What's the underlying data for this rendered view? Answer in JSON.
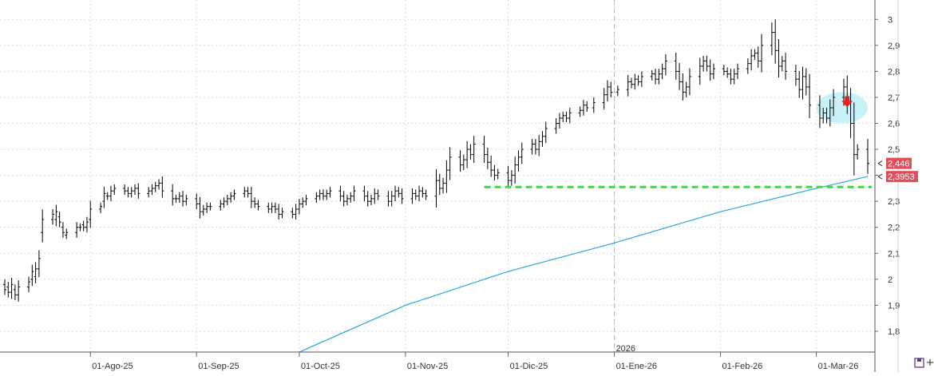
{
  "chart_data": {
    "type": "line",
    "subtype": "ohlc-bars",
    "title": "",
    "xlabel": "",
    "ylabel": "",
    "x_range": [
      "2025-07-07",
      "2026-03-16"
    ],
    "ylim": [
      1.72,
      3.05
    ],
    "y_ticks": [
      "3",
      "2,9",
      "2,8",
      "2,7",
      "2,6",
      "2,5",
      "2,4",
      "2,3",
      "2,2",
      "2,1",
      "2",
      "1,9",
      "1,8"
    ],
    "y_tick_values": [
      3.0,
      2.9,
      2.8,
      2.7,
      2.6,
      2.5,
      2.4,
      2.3,
      2.2,
      2.1,
      2.0,
      1.9,
      1.8
    ],
    "x_tick_labels": [
      {
        "label": "01-Ago-25",
        "date": "2025-08-01"
      },
      {
        "label": "01-Sep-25",
        "date": "2025-09-01"
      },
      {
        "label": "01-Oct-25",
        "date": "2025-10-01"
      },
      {
        "label": "01-Nov-25",
        "date": "2025-11-01"
      },
      {
        "label": "01-Dic-25",
        "date": "2025-12-01"
      },
      {
        "label": "01-Ene-26",
        "date": "2026-01-01"
      },
      {
        "label": "01-Feb-26",
        "date": "2026-02-01"
      },
      {
        "label": "01-Mar-26",
        "date": "2026-03-01"
      }
    ],
    "year_separator": {
      "label": "2026",
      "date": "2026-01-01"
    },
    "grid": true,
    "series": [
      {
        "kind": "ohlc",
        "color": "#000000",
        "points": [
          [
            "2025-07-07",
            1.98,
            1.96
          ],
          [
            "2025-07-08",
            1.97,
            1.95
          ],
          [
            "2025-07-09",
            1.95,
            1.98
          ],
          [
            "2025-07-10",
            1.96,
            1.94
          ],
          [
            "2025-07-11",
            1.94,
            1.97
          ],
          [
            "2025-07-14",
            1.97,
            1.99
          ],
          [
            "2025-07-15",
            2.0,
            2.03
          ],
          [
            "2025-07-16",
            2.01,
            2.04
          ],
          [
            "2025-07-17",
            2.04,
            2.08
          ],
          [
            "2025-07-18",
            2.18,
            2.23
          ],
          [
            "2025-07-21",
            2.23,
            2.25
          ],
          [
            "2025-07-22",
            2.23,
            2.26
          ],
          [
            "2025-07-23",
            2.24,
            2.22
          ],
          [
            "2025-07-24",
            2.2,
            2.18
          ],
          [
            "2025-07-25",
            2.17,
            2.18
          ],
          [
            "2025-07-28",
            2.18,
            2.2
          ],
          [
            "2025-07-29",
            2.2,
            2.2
          ],
          [
            "2025-07-30",
            2.21,
            2.2
          ],
          [
            "2025-07-31",
            2.2,
            2.22
          ],
          [
            "2025-08-01",
            2.23,
            2.27
          ],
          [
            "2025-08-04",
            2.27,
            2.28
          ],
          [
            "2025-08-05",
            2.3,
            2.33
          ],
          [
            "2025-08-06",
            2.32,
            2.32
          ],
          [
            "2025-08-07",
            2.32,
            2.34
          ],
          [
            "2025-08-08",
            2.34,
            2.35
          ],
          [
            "2025-08-11",
            2.35,
            2.34
          ],
          [
            "2025-08-12",
            2.34,
            2.33
          ],
          [
            "2025-08-13",
            2.33,
            2.34
          ],
          [
            "2025-08-14",
            2.34,
            2.35
          ],
          [
            "2025-08-15",
            2.35,
            2.33
          ],
          [
            "2025-08-18",
            2.33,
            2.34
          ],
          [
            "2025-08-19",
            2.34,
            2.35
          ],
          [
            "2025-08-20",
            2.35,
            2.36
          ],
          [
            "2025-08-21",
            2.36,
            2.37
          ],
          [
            "2025-08-22",
            2.37,
            2.34
          ],
          [
            "2025-08-25",
            2.34,
            2.31
          ],
          [
            "2025-08-26",
            2.31,
            2.31
          ],
          [
            "2025-08-27",
            2.31,
            2.32
          ],
          [
            "2025-08-28",
            2.32,
            2.3
          ],
          [
            "2025-08-29",
            2.3,
            2.31
          ],
          [
            "2025-09-01",
            2.31,
            2.29
          ],
          [
            "2025-09-02",
            2.29,
            2.26
          ],
          [
            "2025-09-03",
            2.26,
            2.27
          ],
          [
            "2025-09-04",
            2.27,
            2.28
          ],
          [
            "2025-09-05",
            2.28,
            2.28
          ],
          [
            "2025-09-08",
            2.28,
            2.29
          ],
          [
            "2025-09-09",
            2.29,
            2.3
          ],
          [
            "2025-09-10",
            2.3,
            2.31
          ],
          [
            "2025-09-11",
            2.31,
            2.32
          ],
          [
            "2025-09-12",
            2.32,
            2.33
          ],
          [
            "2025-09-15",
            2.33,
            2.34
          ],
          [
            "2025-09-16",
            2.34,
            2.33
          ],
          [
            "2025-09-17",
            2.33,
            2.3
          ],
          [
            "2025-09-18",
            2.3,
            2.29
          ],
          [
            "2025-09-19",
            2.29,
            2.28
          ],
          [
            "2025-09-22",
            2.28,
            2.27
          ],
          [
            "2025-09-23",
            2.27,
            2.28
          ],
          [
            "2025-09-24",
            2.28,
            2.27
          ],
          [
            "2025-09-25",
            2.27,
            2.25
          ],
          [
            "2025-09-26",
            2.25,
            2.26
          ],
          [
            "2025-09-29",
            2.26,
            2.25
          ],
          [
            "2025-09-30",
            2.25,
            2.27
          ],
          [
            "2025-10-01",
            2.27,
            2.29
          ],
          [
            "2025-10-02",
            2.29,
            2.3
          ],
          [
            "2025-10-03",
            2.3,
            2.31
          ],
          [
            "2025-10-06",
            2.31,
            2.32
          ],
          [
            "2025-10-07",
            2.32,
            2.33
          ],
          [
            "2025-10-08",
            2.33,
            2.32
          ],
          [
            "2025-10-09",
            2.32,
            2.33
          ],
          [
            "2025-10-10",
            2.33,
            2.34
          ],
          [
            "2025-10-13",
            2.34,
            2.32
          ],
          [
            "2025-10-14",
            2.32,
            2.3
          ],
          [
            "2025-10-15",
            2.3,
            2.31
          ],
          [
            "2025-10-16",
            2.31,
            2.32
          ],
          [
            "2025-10-17",
            2.32,
            2.34
          ],
          [
            "2025-10-20",
            2.34,
            2.32
          ],
          [
            "2025-10-21",
            2.32,
            2.3
          ],
          [
            "2025-10-22",
            2.3,
            2.31
          ],
          [
            "2025-10-23",
            2.31,
            2.33
          ],
          [
            "2025-10-24",
            2.33,
            2.32
          ],
          [
            "2025-10-27",
            2.32,
            2.3
          ],
          [
            "2025-10-28",
            2.3,
            2.32
          ],
          [
            "2025-10-29",
            2.32,
            2.34
          ],
          [
            "2025-10-30",
            2.34,
            2.33
          ],
          [
            "2025-10-31",
            2.33,
            2.31
          ],
          [
            "2025-11-03",
            2.31,
            2.33
          ],
          [
            "2025-11-04",
            2.33,
            2.32
          ],
          [
            "2025-11-05",
            2.32,
            2.34
          ],
          [
            "2025-11-06",
            2.34,
            2.33
          ],
          [
            "2025-11-07",
            2.33,
            2.32
          ],
          [
            "2025-11-10",
            2.32,
            2.38
          ],
          [
            "2025-11-11",
            2.38,
            2.35
          ],
          [
            "2025-11-12",
            2.35,
            2.37
          ],
          [
            "2025-11-13",
            2.37,
            2.42
          ],
          [
            "2025-11-14",
            2.42,
            2.47
          ],
          [
            "2025-11-17",
            2.47,
            2.44
          ],
          [
            "2025-11-18",
            2.44,
            2.46
          ],
          [
            "2025-11-19",
            2.46,
            2.5
          ],
          [
            "2025-11-20",
            2.5,
            2.48
          ],
          [
            "2025-11-21",
            2.48,
            2.52
          ],
          [
            "2025-11-24",
            2.52,
            2.48
          ],
          [
            "2025-11-25",
            2.48,
            2.45
          ],
          [
            "2025-11-26",
            2.45,
            2.42
          ],
          [
            "2025-11-27",
            2.42,
            2.4
          ],
          [
            "2025-11-28",
            2.4,
            2.41
          ],
          [
            "2025-12-01",
            2.41,
            2.38
          ],
          [
            "2025-12-02",
            2.38,
            2.4
          ],
          [
            "2025-12-03",
            2.4,
            2.44
          ],
          [
            "2025-12-04",
            2.44,
            2.47
          ],
          [
            "2025-12-05",
            2.47,
            2.5
          ],
          [
            "2025-12-08",
            2.5,
            2.52
          ],
          [
            "2025-12-09",
            2.52,
            2.5
          ],
          [
            "2025-12-10",
            2.5,
            2.53
          ],
          [
            "2025-12-11",
            2.53,
            2.55
          ],
          [
            "2025-12-12",
            2.55,
            2.58
          ],
          [
            "2025-12-15",
            2.58,
            2.6
          ],
          [
            "2025-12-16",
            2.6,
            2.62
          ],
          [
            "2025-12-17",
            2.62,
            2.63
          ],
          [
            "2025-12-18",
            2.63,
            2.62
          ],
          [
            "2025-12-19",
            2.62,
            2.64
          ],
          [
            "2025-12-22",
            2.64,
            2.65
          ],
          [
            "2025-12-23",
            2.65,
            2.67
          ],
          [
            "2025-12-24",
            2.67,
            2.66
          ],
          [
            "2025-12-26",
            2.66,
            2.68
          ],
          [
            "2025-12-29",
            2.68,
            2.71
          ],
          [
            "2025-12-30",
            2.71,
            2.74
          ],
          [
            "2025-12-31",
            2.74,
            2.72
          ],
          [
            "2026-01-02",
            2.72,
            2.73
          ],
          [
            "2026-01-05",
            2.73,
            2.76
          ],
          [
            "2026-01-06",
            2.76,
            2.75
          ],
          [
            "2026-01-07",
            2.75,
            2.77
          ],
          [
            "2026-01-08",
            2.77,
            2.76
          ],
          [
            "2026-01-09",
            2.76,
            2.78
          ],
          [
            "2026-01-12",
            2.78,
            2.79
          ],
          [
            "2026-01-13",
            2.79,
            2.77
          ],
          [
            "2026-01-14",
            2.77,
            2.79
          ],
          [
            "2026-01-15",
            2.79,
            2.81
          ],
          [
            "2026-01-16",
            2.81,
            2.84
          ],
          [
            "2026-01-19",
            2.84,
            2.8
          ],
          [
            "2026-01-20",
            2.8,
            2.76
          ],
          [
            "2026-01-21",
            2.76,
            2.72
          ],
          [
            "2026-01-22",
            2.72,
            2.74
          ],
          [
            "2026-01-23",
            2.74,
            2.78
          ],
          [
            "2026-01-26",
            2.78,
            2.82
          ],
          [
            "2026-01-27",
            2.82,
            2.84
          ],
          [
            "2026-01-28",
            2.84,
            2.82
          ],
          [
            "2026-01-29",
            2.82,
            2.79
          ],
          [
            "2026-01-30",
            2.79,
            2.81
          ],
          [
            "2026-02-02",
            2.81,
            2.8
          ],
          [
            "2026-02-03",
            2.8,
            2.79
          ],
          [
            "2026-02-04",
            2.79,
            2.77
          ],
          [
            "2026-02-05",
            2.77,
            2.79
          ],
          [
            "2026-02-06",
            2.79,
            2.81
          ],
          [
            "2026-02-09",
            2.81,
            2.83
          ],
          [
            "2026-02-10",
            2.83,
            2.86
          ],
          [
            "2026-02-11",
            2.86,
            2.87
          ],
          [
            "2026-02-12",
            2.87,
            2.84
          ],
          [
            "2026-02-13",
            2.84,
            2.9
          ],
          [
            "2026-02-16",
            2.9,
            2.95
          ],
          [
            "2026-02-17",
            2.95,
            2.88
          ],
          [
            "2026-02-18",
            2.88,
            2.82
          ],
          [
            "2026-02-19",
            2.82,
            2.84
          ],
          [
            "2026-02-20",
            2.84,
            2.8
          ],
          [
            "2026-02-23",
            2.8,
            2.77
          ],
          [
            "2026-02-24",
            2.77,
            2.73
          ],
          [
            "2026-02-25",
            2.73,
            2.78
          ],
          [
            "2026-02-26",
            2.78,
            2.74
          ],
          [
            "2026-02-27",
            2.74,
            2.67
          ],
          [
            "2026-03-02",
            2.67,
            2.62
          ],
          [
            "2026-03-03",
            2.62,
            2.64
          ],
          [
            "2026-03-04",
            2.64,
            2.62
          ],
          [
            "2026-03-05",
            2.62,
            2.66
          ],
          [
            "2026-03-06",
            2.66,
            2.7
          ],
          [
            "2026-03-09",
            2.7,
            2.74
          ],
          [
            "2026-03-10",
            2.74,
            2.68
          ],
          [
            "2026-03-11",
            2.68,
            2.6
          ],
          [
            "2026-03-12",
            2.6,
            2.48
          ],
          [
            "2026-03-13",
            2.48,
            2.5
          ],
          [
            "2026-03-16",
            2.5,
            2.446
          ]
        ]
      },
      {
        "kind": "moving-average",
        "color": "#29a8e0",
        "points": [
          [
            "2025-10-01",
            1.72
          ],
          [
            "2025-11-01",
            1.9
          ],
          [
            "2025-12-01",
            2.03
          ],
          [
            "2026-01-01",
            2.14
          ],
          [
            "2026-02-01",
            2.26
          ],
          [
            "2026-03-01",
            2.35
          ],
          [
            "2026-03-16",
            2.3953
          ]
        ]
      }
    ],
    "support_line": {
      "value": 2.355,
      "from": "2025-11-24",
      "to": "2026-03-16",
      "color": "#2ee62e",
      "style": "dashed"
    },
    "highlight_zone": {
      "from": "2026-03-01",
      "to": "2026-03-16",
      "low": 2.6,
      "high": 2.72,
      "color": "#c9f1f8"
    },
    "signal_marker": {
      "date": "2026-03-10",
      "value": 2.68,
      "direction": "down",
      "color": "#e8201e"
    },
    "price_badges": [
      {
        "label": "2,446",
        "value": 2.446,
        "color": "#e0505a"
      },
      {
        "label": "2,3953",
        "value": 2.3953,
        "color": "#e0505a"
      }
    ]
  },
  "toolbar": {
    "save_icon": "floppy-save-icon",
    "add_icon": "plus-icon"
  }
}
